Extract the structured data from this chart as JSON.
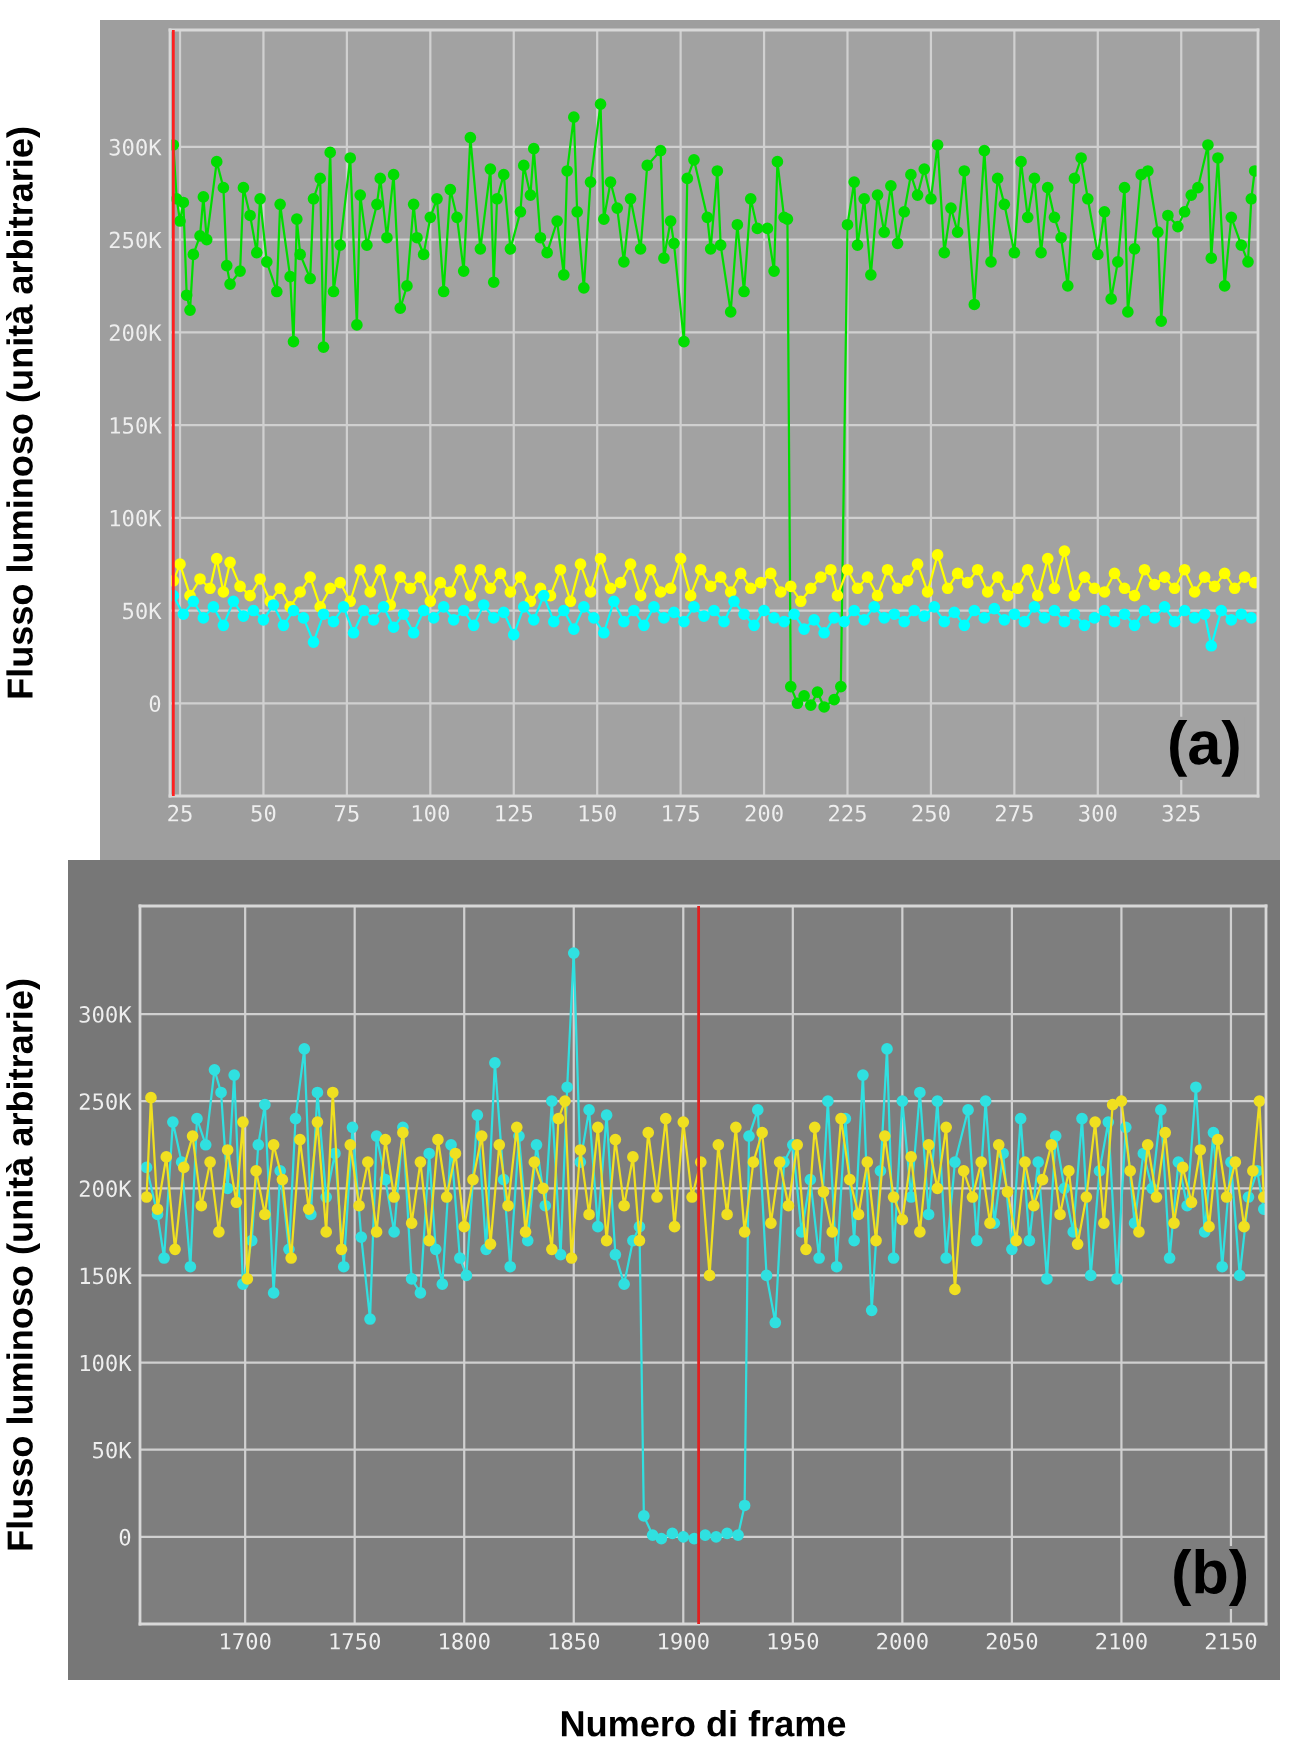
{
  "chart_data": [
    {
      "type": "line",
      "ylabel": "Flusso luminoso (unità arbitrarie)",
      "annotations": [
        "(a)"
      ],
      "marker": "circle",
      "line_style": "solid",
      "grid": true,
      "xlim": [
        22,
        348
      ],
      "xticks": [
        25,
        50,
        75,
        100,
        125,
        150,
        175,
        200,
        225,
        250,
        275,
        300,
        325
      ],
      "ylim": [
        -50000,
        363000
      ],
      "yticks": [
        {
          "value": -50000,
          "label": null
        },
        0,
        {
          "value": 50000,
          "label": "50K"
        },
        {
          "value": 100000,
          "label": "100K"
        },
        {
          "value": 150000,
          "label": "150K"
        },
        {
          "value": 200000,
          "label": "200K"
        },
        {
          "value": 250000,
          "label": "250K"
        },
        {
          "value": 300000,
          "label": "300K"
        }
      ],
      "ref_lines": [
        {
          "axis": "x",
          "value": 23,
          "label": null,
          "color": "#ff2020"
        }
      ],
      "series": [
        {
          "color": "#00dd00",
          "x": [
            23,
            24,
            25,
            26,
            27,
            28,
            29,
            31,
            32,
            33,
            36,
            38,
            39,
            40,
            43,
            44,
            46,
            48,
            49,
            51,
            54,
            55,
            58,
            59,
            60,
            61,
            64,
            65,
            67,
            68,
            70,
            71,
            73,
            76,
            78,
            79,
            81,
            84,
            85,
            87,
            89,
            91,
            93,
            95,
            96,
            98,
            100,
            102,
            104,
            106,
            108,
            110,
            112,
            115,
            118,
            119,
            120,
            122,
            124,
            127,
            128,
            130,
            131,
            133,
            135,
            138,
            140,
            141,
            143,
            144,
            146,
            148,
            151,
            152,
            154,
            156,
            158,
            160,
            163,
            165,
            169,
            170,
            172,
            173,
            176,
            177,
            179,
            183,
            184,
            186,
            187,
            190,
            192,
            194,
            196,
            198,
            201,
            203,
            204,
            206,
            207,
            208,
            210,
            212,
            214,
            216,
            218,
            221,
            223,
            225,
            227,
            228,
            230,
            232,
            234,
            236,
            238,
            240,
            242,
            244,
            246,
            248,
            250,
            252,
            254,
            256,
            258,
            260,
            263,
            266,
            268,
            270,
            272,
            275,
            277,
            279,
            281,
            283,
            285,
            287,
            289,
            291,
            293,
            295,
            297,
            300,
            302,
            304,
            306,
            308,
            309,
            311,
            313,
            315,
            318,
            319,
            321,
            324,
            326,
            328,
            330,
            333,
            334,
            336,
            338,
            340,
            343,
            345,
            346,
            347
          ],
          "values": [
            301000,
            272000,
            260000,
            270000,
            220000,
            212000,
            242000,
            252000,
            273000,
            250000,
            292000,
            278000,
            236000,
            226000,
            233000,
            278000,
            263000,
            243000,
            272000,
            238000,
            222000,
            269000,
            230000,
            195000,
            261000,
            242000,
            229000,
            272000,
            283000,
            192000,
            297000,
            222000,
            247000,
            294000,
            204000,
            274000,
            247000,
            269000,
            283000,
            251000,
            285000,
            213000,
            225000,
            269000,
            251000,
            242000,
            262000,
            272000,
            222000,
            277000,
            262000,
            233000,
            305000,
            245000,
            288000,
            227000,
            272000,
            285000,
            245000,
            265000,
            290000,
            274000,
            299000,
            251000,
            243000,
            260000,
            231000,
            287000,
            316000,
            265000,
            224000,
            281000,
            323000,
            261000,
            281000,
            267000,
            238000,
            272000,
            245000,
            290000,
            298000,
            240000,
            260000,
            248000,
            195000,
            283000,
            293000,
            262000,
            245000,
            287000,
            247000,
            211000,
            258000,
            222000,
            272000,
            256000,
            256000,
            233000,
            292000,
            262000,
            261000,
            9000,
            0,
            4000,
            -1000,
            6000,
            -2000,
            2000,
            9000,
            258000,
            281000,
            247000,
            272000,
            231000,
            274000,
            254000,
            279000,
            248000,
            265000,
            285000,
            274000,
            288000,
            272000,
            301000,
            243000,
            267000,
            254000,
            287000,
            215000,
            298000,
            238000,
            283000,
            269000,
            243000,
            292000,
            262000,
            283000,
            243000,
            278000,
            262000,
            251000,
            225000,
            283000,
            294000,
            272000,
            242000,
            265000,
            218000,
            238000,
            278000,
            211000,
            245000,
            285000,
            287000,
            254000,
            206000,
            263000,
            257000,
            265000,
            274000,
            278000,
            301000,
            240000,
            294000,
            225000,
            262000,
            247000,
            238000,
            272000,
            287000
          ]
        },
        {
          "color": "#ffff00",
          "x": [
            23,
            25,
            28,
            31,
            34,
            36,
            38,
            40,
            43,
            46,
            49,
            52,
            55,
            58,
            61,
            64,
            67,
            70,
            73,
            76,
            79,
            82,
            85,
            88,
            91,
            94,
            97,
            100,
            103,
            106,
            109,
            112,
            115,
            118,
            121,
            124,
            127,
            130,
            133,
            136,
            139,
            142,
            145,
            148,
            151,
            154,
            157,
            160,
            163,
            166,
            169,
            172,
            175,
            178,
            181,
            184,
            187,
            190,
            193,
            196,
            199,
            202,
            205,
            208,
            211,
            214,
            217,
            220,
            222,
            225,
            228,
            231,
            234,
            237,
            240,
            243,
            246,
            249,
            252,
            255,
            258,
            261,
            264,
            267,
            270,
            273,
            276,
            279,
            282,
            285,
            287,
            290,
            293,
            296,
            299,
            302,
            305,
            308,
            311,
            314,
            317,
            320,
            323,
            326,
            329,
            332,
            335,
            338,
            341,
            344,
            347
          ],
          "values": [
            66000,
            75000,
            58000,
            67000,
            62000,
            78000,
            60000,
            76000,
            63000,
            58000,
            67000,
            55000,
            62000,
            52000,
            60000,
            68000,
            52000,
            62000,
            65000,
            55000,
            72000,
            60000,
            72000,
            53000,
            68000,
            62000,
            68000,
            55000,
            65000,
            60000,
            72000,
            58000,
            72000,
            62000,
            70000,
            60000,
            68000,
            55000,
            62000,
            58000,
            72000,
            55000,
            75000,
            60000,
            78000,
            62000,
            65000,
            75000,
            58000,
            72000,
            60000,
            62000,
            78000,
            58000,
            72000,
            63000,
            68000,
            60000,
            70000,
            62000,
            65000,
            70000,
            60000,
            63000,
            55000,
            62000,
            68000,
            72000,
            58000,
            72000,
            62000,
            68000,
            58000,
            72000,
            62000,
            66000,
            75000,
            60000,
            80000,
            62000,
            70000,
            65000,
            72000,
            60000,
            68000,
            58000,
            62000,
            72000,
            58000,
            78000,
            62000,
            82000,
            58000,
            68000,
            62000,
            60000,
            70000,
            62000,
            58000,
            72000,
            64000,
            68000,
            62000,
            72000,
            60000,
            68000,
            63000,
            70000,
            62000,
            68000,
            65000
          ]
        },
        {
          "color": "#00ffff",
          "x": [
            23,
            26,
            29,
            32,
            35,
            38,
            41,
            44,
            47,
            50,
            53,
            56,
            59,
            62,
            65,
            68,
            71,
            74,
            77,
            80,
            83,
            86,
            89,
            92,
            95,
            98,
            101,
            104,
            107,
            110,
            113,
            116,
            119,
            122,
            125,
            128,
            131,
            134,
            137,
            140,
            143,
            146,
            149,
            152,
            155,
            158,
            161,
            164,
            167,
            170,
            173,
            176,
            179,
            182,
            185,
            188,
            191,
            194,
            197,
            200,
            203,
            206,
            209,
            212,
            215,
            218,
            221,
            224,
            227,
            230,
            233,
            236,
            239,
            242,
            245,
            248,
            251,
            254,
            257,
            260,
            263,
            266,
            269,
            272,
            275,
            278,
            281,
            284,
            287,
            290,
            293,
            296,
            299,
            302,
            305,
            308,
            311,
            314,
            317,
            320,
            323,
            326,
            329,
            332,
            334,
            337,
            340,
            343,
            346
          ],
          "values": [
            58000,
            48000,
            55000,
            46000,
            52000,
            42000,
            55000,
            47000,
            50000,
            45000,
            53000,
            42000,
            50000,
            46000,
            33000,
            48000,
            44000,
            52000,
            38000,
            50000,
            45000,
            52000,
            41000,
            48000,
            38000,
            50000,
            46000,
            52000,
            45000,
            50000,
            42000,
            53000,
            46000,
            49000,
            37000,
            52000,
            45000,
            58000,
            44000,
            50000,
            40000,
            52000,
            46000,
            38000,
            55000,
            44000,
            50000,
            42000,
            52000,
            46000,
            49000,
            44000,
            52000,
            47000,
            50000,
            44000,
            55000,
            48000,
            42000,
            50000,
            46000,
            44000,
            48000,
            40000,
            45000,
            38000,
            46000,
            44000,
            50000,
            45000,
            52000,
            46000,
            48000,
            44000,
            50000,
            47000,
            52000,
            44000,
            49000,
            42000,
            50000,
            46000,
            51000,
            45000,
            48000,
            44000,
            52000,
            46000,
            50000,
            44000,
            48000,
            42000,
            46000,
            50000,
            44000,
            48000,
            42000,
            50000,
            46000,
            52000,
            44000,
            50000,
            46000,
            48000,
            31000,
            50000,
            45000,
            48000,
            46000
          ]
        }
      ]
    },
    {
      "type": "line",
      "ylabel": "Flusso luminoso (unità arbitrarie)",
      "xlabel": "Numero di frame",
      "annotations": [
        "(b)"
      ],
      "marker": "circle",
      "line_style": "solid",
      "grid": true,
      "xlim": [
        1652,
        2166
      ],
      "xticks": [
        1700,
        1750,
        1800,
        1850,
        1900,
        1950,
        2000,
        2050,
        2100,
        2150
      ],
      "ylim": [
        -50000,
        362000
      ],
      "yticks": [
        {
          "value": -50000,
          "label": null
        },
        0,
        {
          "value": 50000,
          "label": "50K"
        },
        {
          "value": 100000,
          "label": "100K"
        },
        {
          "value": 150000,
          "label": "150K"
        },
        {
          "value": 200000,
          "label": "200K"
        },
        {
          "value": 250000,
          "label": "250K"
        },
        {
          "value": 300000,
          "label": "300K"
        }
      ],
      "ref_lines": [
        {
          "axis": "x",
          "value": 1907,
          "label": null,
          "color": "#e02020"
        }
      ],
      "series": [
        {
          "color": "#30e0e0",
          "x": [
            1655,
            1660,
            1663,
            1667,
            1671,
            1675,
            1678,
            1682,
            1686,
            1689,
            1692,
            1695,
            1699,
            1703,
            1706,
            1709,
            1713,
            1716,
            1720,
            1723,
            1727,
            1730,
            1733,
            1737,
            1741,
            1745,
            1749,
            1753,
            1757,
            1760,
            1764,
            1768,
            1772,
            1776,
            1780,
            1784,
            1787,
            1790,
            1794,
            1798,
            1801,
            1806,
            1810,
            1814,
            1818,
            1821,
            1825,
            1829,
            1833,
            1837,
            1840,
            1844,
            1847,
            1850,
            1853,
            1857,
            1861,
            1865,
            1869,
            1873,
            1877,
            1880,
            1882,
            1886,
            1890,
            1895,
            1900,
            1905,
            1910,
            1915,
            1920,
            1925,
            1928,
            1930,
            1934,
            1938,
            1942,
            1946,
            1950,
            1954,
            1958,
            1962,
            1966,
            1970,
            1974,
            1978,
            1982,
            1986,
            1990,
            1993,
            1996,
            2000,
            2004,
            2008,
            2012,
            2016,
            2020,
            2024,
            2030,
            2034,
            2038,
            2042,
            2046,
            2050,
            2054,
            2058,
            2062,
            2066,
            2070,
            2074,
            2078,
            2082,
            2086,
            2090,
            2094,
            2098,
            2102,
            2106,
            2110,
            2114,
            2118,
            2122,
            2126,
            2130,
            2134,
            2138,
            2142,
            2146,
            2150,
            2154,
            2158,
            2162,
            2165
          ],
          "values": [
            212000,
            185000,
            160000,
            238000,
            215000,
            155000,
            240000,
            225000,
            268000,
            255000,
            200000,
            265000,
            145000,
            170000,
            225000,
            248000,
            140000,
            210000,
            165000,
            240000,
            280000,
            185000,
            255000,
            195000,
            220000,
            155000,
            235000,
            172000,
            125000,
            230000,
            205000,
            175000,
            235000,
            148000,
            140000,
            220000,
            165000,
            145000,
            225000,
            160000,
            150000,
            242000,
            165000,
            272000,
            205000,
            155000,
            230000,
            170000,
            225000,
            190000,
            250000,
            162000,
            258000,
            335000,
            215000,
            245000,
            178000,
            242000,
            162000,
            145000,
            170000,
            178000,
            12000,
            1000,
            -1000,
            2000,
            0,
            -1000,
            1000,
            0,
            2000,
            1000,
            18000,
            230000,
            245000,
            150000,
            123000,
            215000,
            225000,
            175000,
            205000,
            160000,
            250000,
            155000,
            240000,
            170000,
            265000,
            130000,
            210000,
            280000,
            160000,
            250000,
            195000,
            255000,
            185000,
            250000,
            160000,
            215000,
            245000,
            170000,
            250000,
            180000,
            220000,
            165000,
            240000,
            170000,
            215000,
            148000,
            230000,
            200000,
            175000,
            240000,
            150000,
            210000,
            238000,
            148000,
            235000,
            180000,
            220000,
            200000,
            245000,
            160000,
            215000,
            190000,
            258000,
            175000,
            232000,
            155000,
            215000,
            150000,
            195000,
            210000,
            188000
          ]
        },
        {
          "color": "#f0e020",
          "x": [
            1655,
            1657,
            1660,
            1664,
            1668,
            1672,
            1676,
            1680,
            1684,
            1688,
            1692,
            1696,
            1699,
            1701,
            1705,
            1709,
            1713,
            1717,
            1721,
            1725,
            1729,
            1733,
            1737,
            1740,
            1744,
            1748,
            1752,
            1756,
            1760,
            1764,
            1768,
            1772,
            1776,
            1780,
            1784,
            1788,
            1792,
            1796,
            1800,
            1804,
            1808,
            1812,
            1816,
            1820,
            1824,
            1828,
            1832,
            1836,
            1840,
            1843,
            1846,
            1849,
            1853,
            1857,
            1861,
            1865,
            1869,
            1873,
            1877,
            1880,
            1884,
            1888,
            1892,
            1896,
            1900,
            1904,
            1908,
            1912,
            1916,
            1920,
            1924,
            1928,
            1932,
            1936,
            1940,
            1944,
            1948,
            1952,
            1956,
            1960,
            1964,
            1968,
            1972,
            1976,
            1980,
            1984,
            1988,
            1992,
            1996,
            2000,
            2004,
            2008,
            2012,
            2016,
            2020,
            2024,
            2028,
            2032,
            2036,
            2040,
            2044,
            2048,
            2052,
            2056,
            2060,
            2064,
            2068,
            2072,
            2076,
            2080,
            2084,
            2088,
            2092,
            2096,
            2100,
            2104,
            2108,
            2112,
            2116,
            2120,
            2124,
            2128,
            2132,
            2136,
            2140,
            2144,
            2148,
            2152,
            2156,
            2160,
            2163,
            2165
          ],
          "values": [
            195000,
            252000,
            188000,
            218000,
            165000,
            212000,
            230000,
            190000,
            215000,
            175000,
            222000,
            192000,
            238000,
            148000,
            210000,
            185000,
            225000,
            205000,
            160000,
            228000,
            188000,
            238000,
            175000,
            255000,
            165000,
            225000,
            190000,
            215000,
            175000,
            228000,
            195000,
            232000,
            180000,
            215000,
            170000,
            228000,
            195000,
            220000,
            178000,
            205000,
            230000,
            168000,
            225000,
            190000,
            235000,
            175000,
            215000,
            200000,
            165000,
            240000,
            250000,
            160000,
            222000,
            185000,
            235000,
            170000,
            228000,
            190000,
            218000,
            170000,
            232000,
            195000,
            240000,
            178000,
            238000,
            195000,
            215000,
            150000,
            225000,
            185000,
            235000,
            175000,
            215000,
            232000,
            180000,
            215000,
            190000,
            225000,
            165000,
            235000,
            198000,
            175000,
            240000,
            205000,
            185000,
            215000,
            170000,
            230000,
            195000,
            182000,
            218000,
            175000,
            225000,
            200000,
            235000,
            142000,
            210000,
            195000,
            215000,
            180000,
            225000,
            198000,
            170000,
            215000,
            190000,
            205000,
            225000,
            185000,
            210000,
            168000,
            195000,
            238000,
            180000,
            248000,
            250000,
            210000,
            175000,
            225000,
            195000,
            232000,
            180000,
            212000,
            192000,
            222000,
            178000,
            228000,
            195000,
            215000,
            178000,
            210000,
            250000,
            195000
          ]
        }
      ]
    }
  ]
}
